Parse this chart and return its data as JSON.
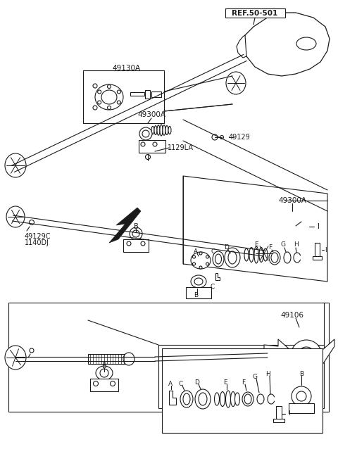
{
  "bg_color": "#ffffff",
  "line_color": "#1a1a1a",
  "figsize": [
    4.8,
    6.55
  ],
  "dpi": 100,
  "labels": {
    "ref": "REF.50-501",
    "p49130A": "49130A",
    "p49300A_1": "49300A",
    "p49300A_2": "49300A",
    "p49129": "49129",
    "p1129LA": "1129LA",
    "p49129C": "49129C",
    "p1140DJ": "1140DJ",
    "p49106": "49106"
  }
}
